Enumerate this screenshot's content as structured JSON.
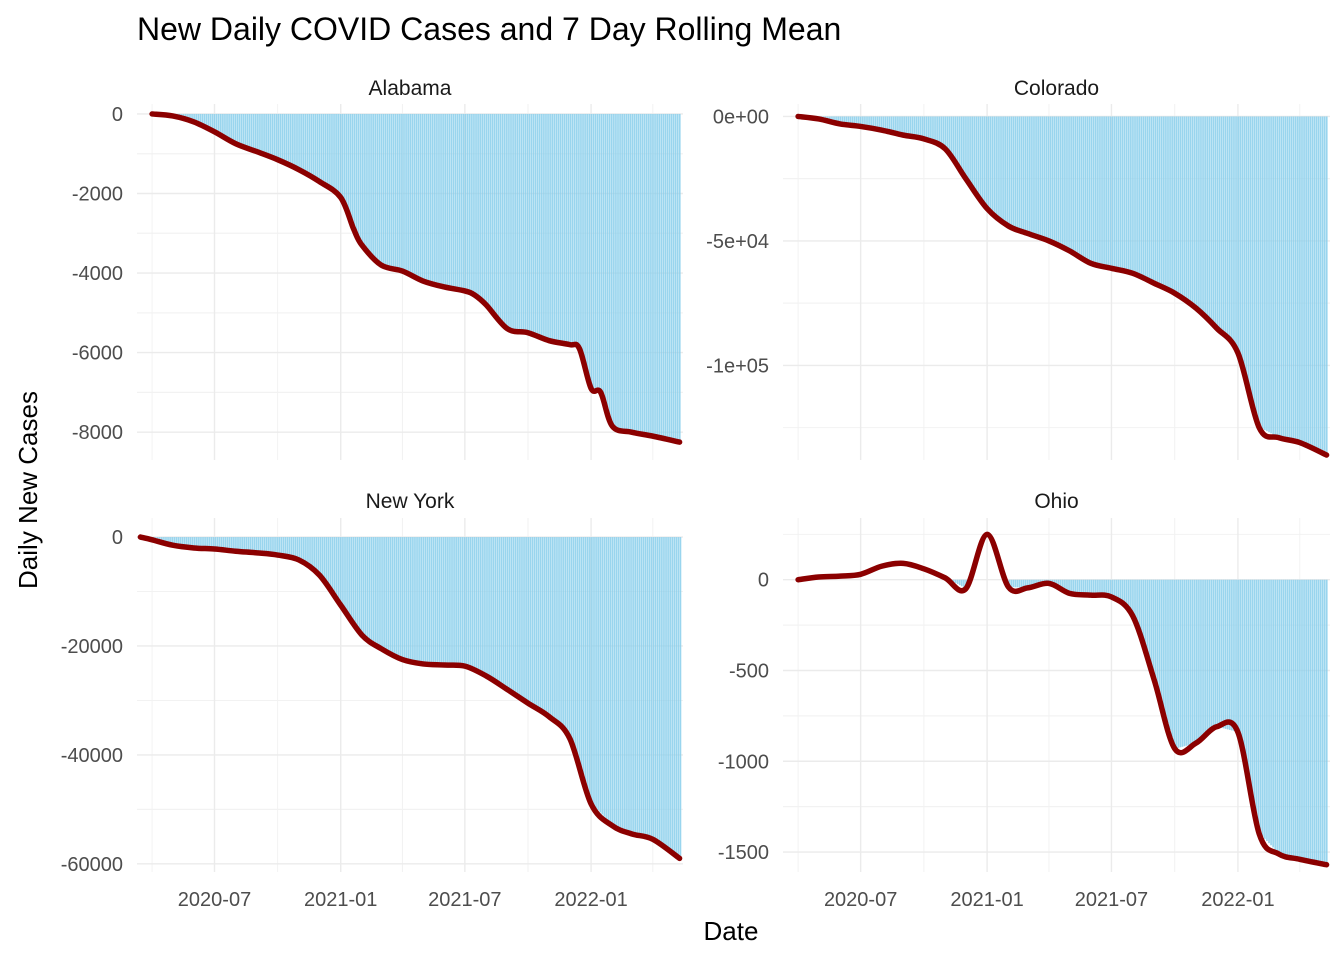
{
  "chart_data": {
    "type": "area",
    "title": "New Daily COVID Cases and 7 Day Rolling Mean",
    "xlabel": "Date",
    "ylabel": "Daily New Cases",
    "x_tick_labels": [
      "2020-07",
      "2021-01",
      "2021-07",
      "2022-01"
    ],
    "x_range": [
      "2020-03-10",
      "2022-05-15"
    ],
    "grid": true,
    "colors": {
      "bars": "#87ceeb",
      "line": "#8b0000",
      "grid": "#ebebeb"
    },
    "panels": [
      {
        "name": "Alabama",
        "ylim": [
          -8700,
          250
        ],
        "y_ticks": [
          0,
          -2000,
          -4000,
          -6000,
          -8000
        ],
        "y_tick_labels": [
          "0",
          "-2000",
          "-4000",
          "-6000",
          "-8000"
        ],
        "x": [
          "2020-04-01",
          "2020-05-01",
          "2020-06-01",
          "2020-07-01",
          "2020-08-01",
          "2020-09-01",
          "2020-10-01",
          "2020-11-01",
          "2020-12-01",
          "2021-01-01",
          "2021-01-20",
          "2021-02-01",
          "2021-03-01",
          "2021-04-01",
          "2021-05-01",
          "2021-06-01",
          "2021-07-01",
          "2021-07-15",
          "2021-08-01",
          "2021-09-01",
          "2021-10-01",
          "2021-11-01",
          "2021-12-01",
          "2021-12-15",
          "2022-01-01",
          "2022-01-15",
          "2022-02-01",
          "2022-03-01",
          "2022-04-01",
          "2022-05-10"
        ],
        "values": [
          0,
          -50,
          -200,
          -450,
          -750,
          -950,
          -1150,
          -1400,
          -1700,
          -2100,
          -2900,
          -3300,
          -3800,
          -3950,
          -4200,
          -4350,
          -4450,
          -4550,
          -4800,
          -5400,
          -5500,
          -5700,
          -5800,
          -5900,
          -6900,
          -7000,
          -7850,
          -8000,
          -8100,
          -8250
        ]
      },
      {
        "name": "Colorado",
        "ylim": [
          -138000,
          5000
        ],
        "y_ticks": [
          0,
          -50000,
          -100000
        ],
        "y_tick_labels": [
          "0e+00",
          "-5e+04",
          "-1e+05"
        ],
        "x": [
          "2020-04-01",
          "2020-05-01",
          "2020-06-01",
          "2020-07-01",
          "2020-08-01",
          "2020-09-01",
          "2020-10-01",
          "2020-11-01",
          "2020-12-01",
          "2021-01-01",
          "2021-02-01",
          "2021-03-01",
          "2021-04-01",
          "2021-05-01",
          "2021-06-01",
          "2021-07-01",
          "2021-08-01",
          "2021-09-01",
          "2021-10-01",
          "2021-11-01",
          "2021-12-01",
          "2022-01-01",
          "2022-02-01",
          "2022-03-01",
          "2022-04-01",
          "2022-05-10"
        ],
        "values": [
          0,
          -1000,
          -3000,
          -4000,
          -5500,
          -7500,
          -9000,
          -13000,
          -25000,
          -37000,
          -44000,
          -47000,
          -50000,
          -54000,
          -59000,
          -61000,
          -63000,
          -67000,
          -71000,
          -77000,
          -85000,
          -95000,
          -125000,
          -129000,
          -131000,
          -136000
        ]
      },
      {
        "name": "New York",
        "ylim": [
          -61500,
          3500
        ],
        "y_ticks": [
          0,
          -20000,
          -40000,
          -60000
        ],
        "y_tick_labels": [
          "0",
          "-20000",
          "-40000",
          "-60000"
        ],
        "x": [
          "2020-03-15",
          "2020-04-01",
          "2020-05-01",
          "2020-06-01",
          "2020-07-01",
          "2020-08-01",
          "2020-09-01",
          "2020-10-01",
          "2020-11-01",
          "2020-12-01",
          "2021-01-01",
          "2021-02-01",
          "2021-03-01",
          "2021-04-01",
          "2021-05-01",
          "2021-06-01",
          "2021-07-01",
          "2021-08-01",
          "2021-09-01",
          "2021-10-01",
          "2021-11-01",
          "2021-12-01",
          "2022-01-01",
          "2022-02-01",
          "2022-03-01",
          "2022-04-01",
          "2022-05-10"
        ],
        "values": [
          0,
          -500,
          -1500,
          -2000,
          -2200,
          -2600,
          -2900,
          -3300,
          -4200,
          -7000,
          -12500,
          -18000,
          -20500,
          -22500,
          -23300,
          -23500,
          -23700,
          -25500,
          -28000,
          -30500,
          -33000,
          -37000,
          -49000,
          -53000,
          -54500,
          -55500,
          -59000
        ]
      },
      {
        "name": "Ohio",
        "ylim": [
          -1610,
          340
        ],
        "y_ticks": [
          0,
          -500,
          -1000,
          -1500
        ],
        "y_tick_labels": [
          "0",
          "-500",
          "-1000",
          "-1500"
        ],
        "x": [
          "2020-04-01",
          "2020-05-01",
          "2020-06-01",
          "2020-07-01",
          "2020-08-01",
          "2020-09-01",
          "2020-10-01",
          "2020-11-01",
          "2020-12-01",
          "2021-01-01",
          "2021-02-01",
          "2021-03-01",
          "2021-04-01",
          "2021-05-01",
          "2021-06-01",
          "2021-07-01",
          "2021-08-01",
          "2021-09-01",
          "2021-10-01",
          "2021-11-01",
          "2021-12-01",
          "2022-01-01",
          "2022-02-01",
          "2022-03-01",
          "2022-04-01",
          "2022-05-10"
        ],
        "values": [
          0,
          15,
          20,
          30,
          75,
          90,
          60,
          10,
          -50,
          250,
          -40,
          -45,
          -20,
          -75,
          -85,
          -95,
          -200,
          -550,
          -930,
          -900,
          -810,
          -840,
          -1400,
          -1510,
          -1540,
          -1570
        ]
      }
    ]
  }
}
